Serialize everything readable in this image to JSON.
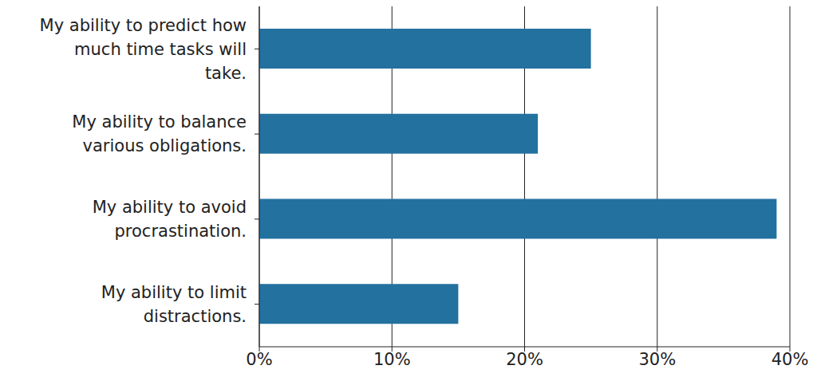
{
  "chart_data": {
    "type": "bar",
    "orientation": "horizontal",
    "categories": [
      "My ability to predict how much time tasks will take.",
      "My ability to balance various obligations.",
      "My ability to avoid procrastination.",
      "My ability to limit distractions."
    ],
    "values": [
      25,
      21,
      39,
      15
    ],
    "color": "#23719f",
    "xlim": [
      0,
      40
    ],
    "xticks": [
      {
        "value": 0,
        "label": "0%"
      },
      {
        "value": 10,
        "label": "10%"
      },
      {
        "value": 20,
        "label": "20%"
      },
      {
        "value": 30,
        "label": "30%"
      },
      {
        "value": 40,
        "label": "40%"
      }
    ],
    "grid": true
  }
}
